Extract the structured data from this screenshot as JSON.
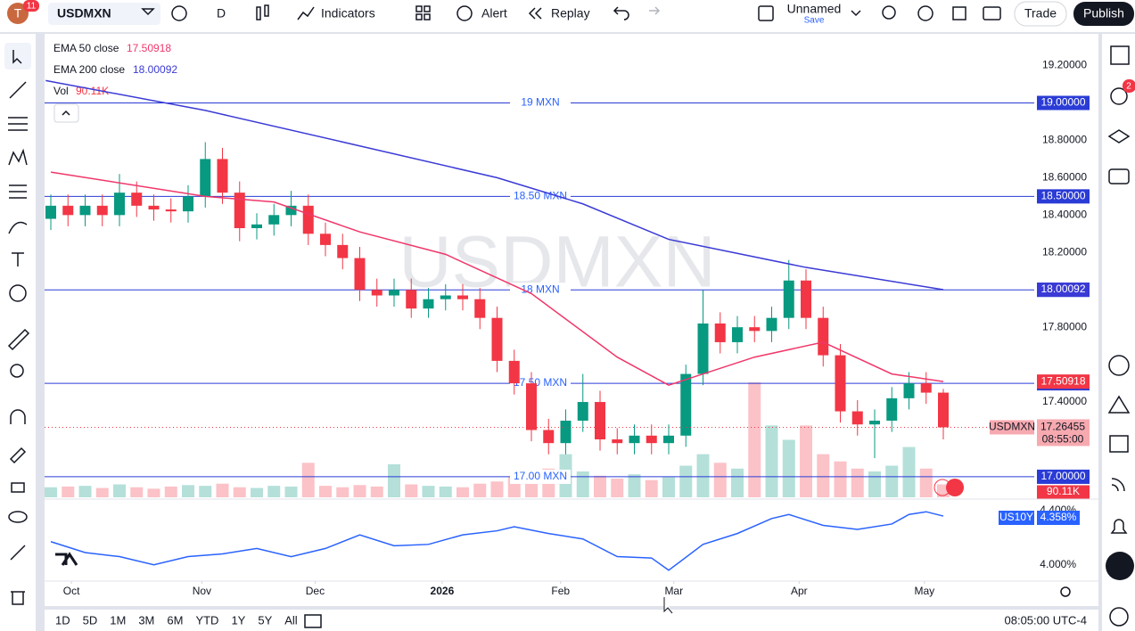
{
  "toolbar": {
    "avatar": "T",
    "notif_badge": "11",
    "symbol": "USDMXN",
    "interval": "D",
    "indicators": "Indicators",
    "alert": "Alert",
    "replay": "Replay",
    "layout_name": "Unnamed",
    "save": "Save",
    "trade": "Trade",
    "publish": "Publish",
    "alerts_badge": "2"
  },
  "chart_data": {
    "type": "candlestick",
    "watermark": "USDMXN",
    "xticks": [
      {
        "value": 1.2,
        "label": "Oct"
      },
      {
        "value": 8.8,
        "label": "Nov"
      },
      {
        "value": 15.4,
        "label": "Dec"
      },
      {
        "value": 22.8,
        "label": "2026"
      },
      {
        "value": 29.7,
        "label": "Feb"
      },
      {
        "value": 36.3,
        "label": "Mar"
      },
      {
        "value": 43.6,
        "label": "Apr"
      },
      {
        "value": 50.9,
        "label": "May"
      }
    ],
    "open": [
      18.38,
      18.45,
      18.4,
      18.45,
      18.4,
      18.52,
      18.45,
      18.43,
      18.42,
      18.5,
      18.7,
      18.52,
      18.33,
      18.35,
      18.4,
      18.45,
      18.3,
      18.24,
      18.17,
      18.0,
      17.97,
      18.0,
      17.9,
      17.95,
      17.97,
      17.95,
      17.85,
      17.62,
      17.5,
      17.25,
      17.18,
      17.3,
      17.4,
      17.2,
      17.18,
      17.22,
      17.18,
      17.22,
      17.55,
      17.82,
      17.72,
      17.8,
      17.78,
      17.85,
      18.05,
      17.85,
      17.65,
      17.35,
      17.28,
      17.3,
      17.42,
      17.5,
      17.45
    ],
    "high": [
      18.51,
      18.51,
      18.51,
      18.51,
      18.62,
      18.58,
      18.51,
      18.49,
      18.56,
      18.79,
      18.76,
      18.58,
      18.41,
      18.46,
      18.53,
      18.51,
      18.36,
      18.3,
      18.23,
      18.06,
      18.06,
      18.06,
      18.01,
      18.03,
      18.03,
      18.01,
      17.91,
      17.68,
      17.56,
      17.31,
      17.36,
      17.55,
      17.46,
      17.26,
      17.28,
      17.28,
      17.28,
      17.6,
      18.0,
      17.88,
      17.86,
      17.86,
      17.91,
      18.16,
      18.11,
      17.91,
      17.71,
      17.41,
      17.36,
      17.48,
      17.56,
      17.56,
      17.47
    ],
    "low": [
      18.32,
      18.34,
      18.34,
      18.34,
      18.34,
      18.39,
      18.37,
      18.36,
      18.36,
      18.44,
      18.46,
      18.26,
      18.27,
      18.29,
      18.34,
      18.24,
      18.18,
      18.11,
      17.94,
      17.91,
      17.91,
      17.85,
      17.85,
      17.89,
      17.89,
      17.79,
      17.56,
      17.44,
      17.19,
      17.12,
      17.12,
      17.24,
      17.14,
      17.12,
      17.12,
      17.12,
      17.12,
      17.16,
      17.49,
      17.66,
      17.66,
      17.72,
      17.72,
      17.79,
      17.79,
      17.59,
      17.29,
      17.22,
      17.1,
      17.24,
      17.36,
      17.39,
      17.2
    ],
    "close": [
      18.45,
      18.4,
      18.45,
      18.4,
      18.52,
      18.45,
      18.43,
      18.42,
      18.5,
      18.7,
      18.52,
      18.33,
      18.35,
      18.4,
      18.45,
      18.3,
      18.24,
      18.17,
      18.0,
      17.97,
      18.0,
      17.9,
      17.95,
      17.97,
      17.95,
      17.85,
      17.62,
      17.5,
      17.25,
      17.18,
      17.3,
      17.4,
      17.2,
      17.18,
      17.22,
      17.18,
      17.22,
      17.55,
      17.82,
      17.72,
      17.8,
      17.78,
      17.85,
      18.05,
      17.85,
      17.65,
      17.35,
      17.28,
      17.3,
      17.42,
      17.5,
      17.45,
      17.26455
    ],
    "countdown": "08:55:00",
    "up_color": "#089981",
    "down_color": "#f23645",
    "ylim": [
      16.89,
      19.36
    ],
    "yticks": [
      {
        "value": 19.2,
        "label": "19.20000"
      },
      {
        "value": 18.8,
        "label": "18.80000"
      },
      {
        "value": 18.6,
        "label": "18.60000"
      },
      {
        "value": 18.4,
        "label": "18.40000"
      },
      {
        "value": 18.2,
        "label": "18.20000"
      },
      {
        "value": 17.8,
        "label": "17.80000"
      },
      {
        "value": 17.4,
        "label": "17.40000"
      }
    ],
    "levels": [
      {
        "value": 19,
        "label": "19 MXN",
        "price_label": "19.00000"
      },
      {
        "value": 18.5,
        "label": "18.50 MXN",
        "price_label": "18.50000"
      },
      {
        "value": 18,
        "label": "18 MXN",
        "price_label": "18.00000"
      },
      {
        "value": 17.5,
        "label": "17.50 MXN",
        "price_label": "17.50000"
      },
      {
        "value": 17,
        "label": "17.00 MXN",
        "price_label": "17.00000"
      }
    ],
    "indicators": [
      {
        "name": "EMA 50 close",
        "value": 17.50918,
        "color": "#f0376a",
        "x": [
          0,
          9,
          13,
          18,
          23,
          28,
          33,
          36,
          41,
          45,
          49,
          52
        ],
        "values": [
          18.63,
          18.5,
          18.47,
          18.31,
          18.19,
          17.98,
          17.64,
          17.49,
          17.64,
          17.72,
          17.55,
          17.50918
        ]
      },
      {
        "name": "EMA 200 close",
        "value": 18.00092,
        "color": "#3a3ad6",
        "x": [
          -0.3,
          9,
          18,
          26,
          31,
          36,
          44,
          52
        ],
        "values": [
          19.12,
          18.96,
          18.77,
          18.6,
          18.46,
          18.27,
          18.12,
          18.00092
        ]
      }
    ],
    "volume": {
      "name": "Vol",
      "value_label": "90.11K",
      "ylim": [
        0,
        1600
      ],
      "values": [
        70,
        75,
        80,
        65,
        90,
        70,
        60,
        75,
        85,
        80,
        95,
        70,
        65,
        80,
        75,
        240,
        80,
        70,
        85,
        75,
        230,
        90,
        80,
        75,
        70,
        95,
        110,
        140,
        160,
        200,
        300,
        180,
        150,
        130,
        160,
        120,
        140,
        220,
        300,
        240,
        200,
        800,
        500,
        400,
        500,
        300,
        250,
        200,
        180,
        220,
        350,
        200,
        90.11
      ]
    },
    "compare": {
      "name": "US10Y",
      "value_label": "4.358%",
      "color": "#2962ff",
      "ylim": [
        3.88,
        4.47
      ],
      "yticks": [
        {
          "value": 4.0,
          "label": "4.000%"
        },
        {
          "value": 4.4,
          "label": "4.400%"
        }
      ],
      "x": [
        0,
        2,
        4,
        6,
        8,
        10,
        12,
        14,
        16,
        18,
        20,
        22,
        24,
        26,
        27,
        29,
        31,
        33,
        35,
        36,
        38,
        40,
        42,
        43,
        45,
        47,
        49,
        50,
        51,
        52
      ],
      "values": [
        4.17,
        4.09,
        4.06,
        4.0,
        4.06,
        4.08,
        4.12,
        4.06,
        4.12,
        4.22,
        4.14,
        4.15,
        4.22,
        4.25,
        4.28,
        4.23,
        4.19,
        4.06,
        4.05,
        3.96,
        4.15,
        4.23,
        4.34,
        4.37,
        4.29,
        4.26,
        4.3,
        4.37,
        4.39,
        4.358
      ]
    }
  },
  "bottom_bar": {
    "ranges": [
      "1D",
      "5D",
      "1M",
      "3M",
      "6M",
      "YTD",
      "1Y",
      "5Y",
      "All"
    ],
    "clock": "08:05:00 UTC-4"
  }
}
